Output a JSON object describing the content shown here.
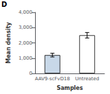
{
  "chart_data": {
    "type": "bar",
    "categories": [
      "AAV9-scFvD18",
      "Untreated"
    ],
    "values": [
      1200,
      2500
    ],
    "errors": [
      120,
      180
    ],
    "colors": [
      "#c8d8e8",
      "#ffffff"
    ],
    "xlabel": "Samples",
    "ylabel": "Mean density",
    "ylim": [
      0,
      4000
    ],
    "yticks": [
      0,
      1000,
      2000,
      3000,
      4000
    ],
    "annotation": "D",
    "grid": false
  }
}
